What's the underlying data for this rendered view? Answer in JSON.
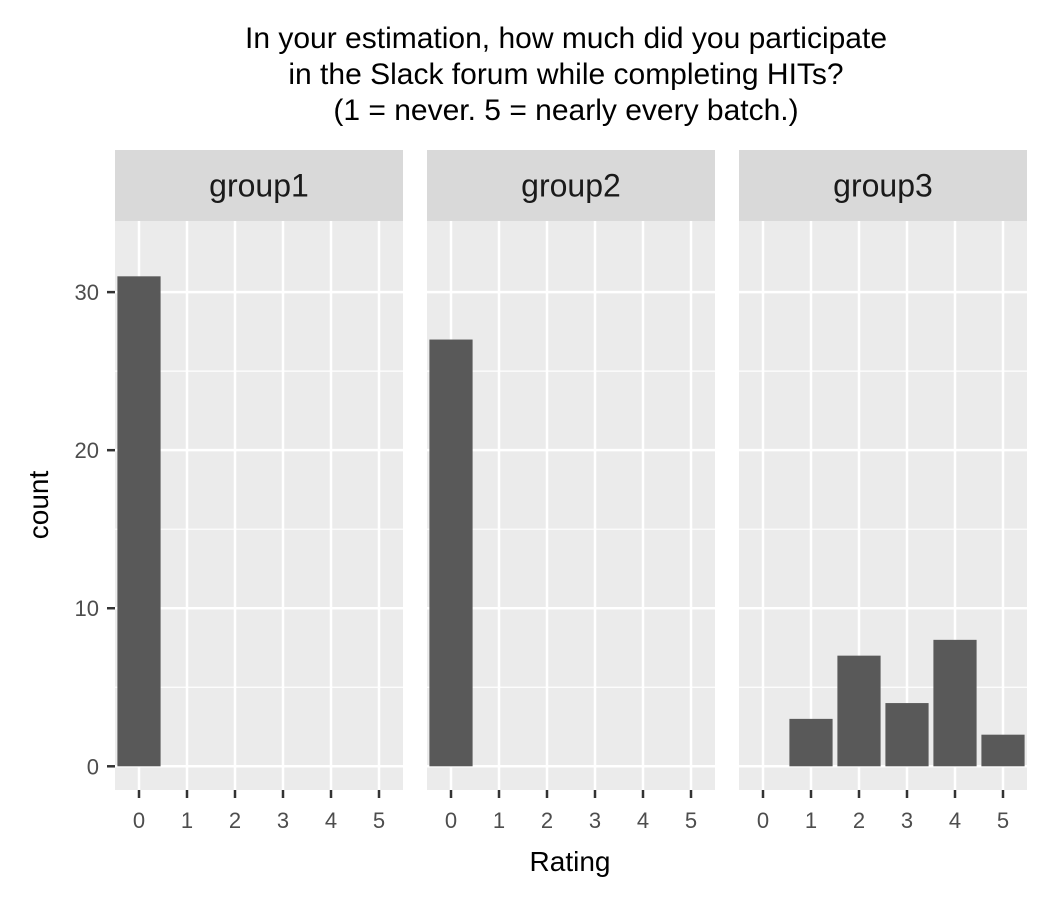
{
  "chart_data": {
    "type": "bar",
    "title_lines": [
      "In your estimation, how much did you participate",
      "in the Slack forum while completing HITs?",
      "(1 = never. 5 = nearly every batch.)"
    ],
    "xlabel": "Rating",
    "ylabel": "count",
    "categories": [
      "0",
      "1",
      "2",
      "3",
      "4",
      "5"
    ],
    "y_ticks": [
      0,
      10,
      20,
      30
    ],
    "ylim": [
      -1.5,
      34.5
    ],
    "grid": true,
    "panels": [
      {
        "name": "group1",
        "values": [
          31,
          0,
          0,
          0,
          0,
          0
        ]
      },
      {
        "name": "group2",
        "values": [
          27,
          0,
          0,
          0,
          0,
          0
        ]
      },
      {
        "name": "group3",
        "values": [
          0,
          3,
          7,
          4,
          8,
          2
        ]
      }
    ],
    "colors": {
      "bar": "#595959",
      "panel_bg": "#EBEBEB",
      "strip_bg": "#D9D9D9",
      "grid": "#FFFFFF",
      "tick": "#333333"
    }
  }
}
